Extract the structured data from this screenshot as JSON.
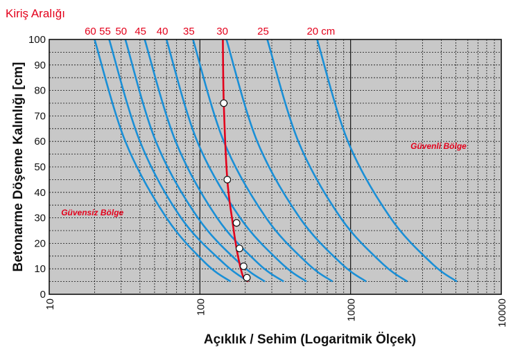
{
  "chart_data": {
    "type": "line",
    "title": "Kiriş Aralığı",
    "xlabel": "Açıklık / Sehim (Logaritmik Ölçek)",
    "ylabel": "Betonarme Döşeme Kalınlığı [cm]",
    "xscale": "log",
    "xlim": [
      10,
      10000
    ],
    "ylim": [
      0,
      100
    ],
    "x_ticks": [
      10,
      100,
      1000,
      10000
    ],
    "x_tick_labels": [
      "10",
      "100",
      "1000",
      "10000"
    ],
    "y_ticks": [
      0,
      10,
      20,
      30,
      40,
      50,
      60,
      70,
      80,
      90,
      100
    ],
    "y_tick_labels": [
      "0",
      "10",
      "20",
      "30",
      "40",
      "50",
      "60",
      "70",
      "80",
      "90",
      "100"
    ],
    "grid": true,
    "top_labels": [
      "60",
      "55",
      "50",
      "45",
      "40",
      "35",
      "30",
      "25",
      "20 cm"
    ],
    "curve_color": "#1a8fd6",
    "optimum_color": "#e3001b",
    "plot_background": "#c8c8c8",
    "series": [
      {
        "label_index": 0,
        "x": [
          20,
          32,
          60,
          110,
          160
        ],
        "y": [
          100,
          60,
          30,
          12,
          5
        ]
      },
      {
        "label_index": 1,
        "x": [
          25,
          40,
          75,
          145,
          210
        ],
        "y": [
          100,
          60,
          30,
          12,
          5
        ]
      },
      {
        "label_index": 2,
        "x": [
          32,
          51,
          97,
          185,
          270
        ],
        "y": [
          100,
          60,
          30,
          12,
          5
        ]
      },
      {
        "label_index": 3,
        "x": [
          43,
          69,
          130,
          245,
          360
        ],
        "y": [
          100,
          60,
          30,
          12,
          5
        ]
      },
      {
        "label_index": 4,
        "x": [
          60,
          96,
          185,
          350,
          510
        ],
        "y": [
          100,
          60,
          30,
          12,
          5
        ]
      },
      {
        "label_index": 5,
        "x": [
          90,
          144,
          275,
          520,
          760
        ],
        "y": [
          100,
          60,
          30,
          12,
          5
        ]
      },
      {
        "label_index": 6,
        "x": [
          150,
          240,
          460,
          870,
          1270
        ],
        "y": [
          100,
          60,
          30,
          12,
          5
        ]
      },
      {
        "label_index": 7,
        "x": [
          280,
          450,
          860,
          1630,
          2380
        ],
        "y": [
          100,
          60,
          30,
          12,
          5
        ]
      },
      {
        "label_index": 8,
        "x": [
          600,
          960,
          1840,
          3480,
          5080
        ],
        "y": [
          100,
          60,
          30,
          12,
          5
        ]
      }
    ],
    "optimum_line": {
      "x": [
        142,
        144,
        152,
        165,
        175,
        185,
        195,
        210
      ],
      "y": [
        100,
        75,
        45,
        28,
        18,
        11,
        6.5,
        5
      ]
    },
    "optimum_points": {
      "x": [
        144,
        152,
        175,
        183,
        195,
        205
      ],
      "y": [
        75,
        45,
        28,
        18,
        11,
        6.5
      ]
    },
    "annotations": [
      {
        "text": "Güvenli Bölge",
        "x": 2500,
        "y": 57
      },
      {
        "text": "Güvensiz Bölge",
        "x": 12,
        "y": 31
      }
    ]
  }
}
